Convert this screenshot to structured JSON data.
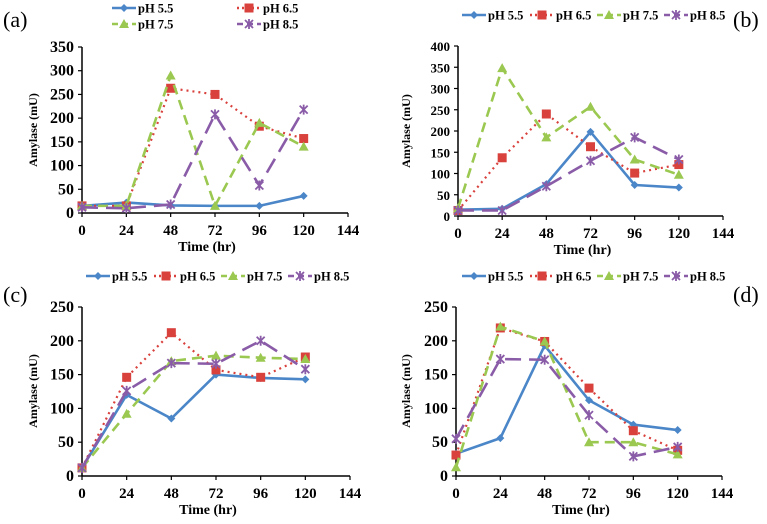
{
  "colors": {
    "pH 5.5": "#4a86c8",
    "pH 6.5": "#d9413d",
    "pH 7.5": "#9bc850",
    "pH 8.5": "#8a5ca8"
  },
  "chart_data": [
    {
      "type": "line",
      "panel_label": "(a)",
      "xlabel": "Time (hr)",
      "ylabel": "Amylase  (mU)",
      "x": [
        0,
        24,
        48,
        72,
        96,
        120
      ],
      "xticks": [
        0,
        24,
        48,
        72,
        96,
        120,
        144
      ],
      "xlim": [
        0,
        144
      ],
      "yticks": [
        0,
        50,
        100,
        150,
        200,
        250,
        300,
        350
      ],
      "ylim": [
        0,
        350
      ],
      "legend_placement": "top",
      "series": [
        {
          "name": "pH 5.5",
          "values": [
            15,
            22,
            16,
            15,
            15,
            36
          ]
        },
        {
          "name": "pH 6.5",
          "values": [
            15,
            15,
            263,
            250,
            183,
            157
          ]
        },
        {
          "name": "pH 7.5",
          "values": [
            15,
            15,
            290,
            15,
            190,
            140
          ]
        },
        {
          "name": "pH 8.5",
          "values": [
            12,
            10,
            18,
            208,
            58,
            218
          ]
        }
      ]
    },
    {
      "type": "line",
      "panel_label": "(b)",
      "xlabel": "Time (hr)",
      "ylabel": "Amylase  (mU)",
      "x": [
        0,
        24,
        48,
        72,
        96,
        120
      ],
      "xticks": [
        0,
        24,
        48,
        72,
        96,
        120,
        144
      ],
      "xlim": [
        0,
        144
      ],
      "yticks": [
        0,
        50,
        100,
        150,
        200,
        250,
        300,
        350,
        400
      ],
      "ylim": [
        0,
        400
      ],
      "legend_placement": "top",
      "series": [
        {
          "name": "pH 5.5",
          "values": [
            15,
            17,
            75,
            198,
            73,
            67
          ]
        },
        {
          "name": "pH 6.5",
          "values": [
            13,
            137,
            240,
            163,
            101,
            121
          ]
        },
        {
          "name": "pH 7.5",
          "values": [
            18,
            348,
            185,
            257,
            133,
            97
          ]
        },
        {
          "name": "pH 8.5",
          "values": [
            13,
            13,
            70,
            130,
            185,
            133
          ]
        }
      ]
    },
    {
      "type": "line",
      "panel_label": "(c)",
      "xlabel": "Time (hr)",
      "ylabel": "Amylase (mU)",
      "x": [
        0,
        24,
        48,
        72,
        96,
        120
      ],
      "xticks": [
        0,
        24,
        48,
        72,
        96,
        120,
        144
      ],
      "xlim": [
        0,
        144
      ],
      "yticks": [
        0,
        50,
        100,
        150,
        200,
        250
      ],
      "ylim": [
        0,
        250
      ],
      "legend_placement": "top",
      "series": [
        {
          "name": "pH 5.5",
          "values": [
            12,
            120,
            85,
            150,
            145,
            143
          ]
        },
        {
          "name": "pH 6.5",
          "values": [
            12,
            146,
            212,
            157,
            146,
            176
          ]
        },
        {
          "name": "pH 7.5",
          "values": [
            12,
            92,
            170,
            178,
            175,
            173
          ]
        },
        {
          "name": "pH 8.5",
          "values": [
            12,
            126,
            167,
            166,
            200,
            158
          ]
        }
      ]
    },
    {
      "type": "line",
      "panel_label": "(d)",
      "xlabel": "Time (hr)",
      "ylabel": "Amylase  (mU)",
      "x": [
        0,
        24,
        48,
        72,
        96,
        120
      ],
      "xticks": [
        0,
        24,
        48,
        72,
        96,
        120,
        144
      ],
      "xlim": [
        0,
        144
      ],
      "yticks": [
        0,
        50,
        100,
        150,
        200,
        250
      ],
      "ylim": [
        0,
        250
      ],
      "legend_placement": "top",
      "series": [
        {
          "name": "pH 5.5",
          "values": [
            33,
            56,
            193,
            112,
            76,
            68
          ]
        },
        {
          "name": "pH 6.5",
          "values": [
            31,
            219,
            199,
            130,
            67,
            38
          ]
        },
        {
          "name": "pH 7.5",
          "values": [
            13,
            221,
            199,
            50,
            50,
            32
          ]
        },
        {
          "name": "pH 8.5",
          "values": [
            55,
            173,
            172,
            90,
            29,
            43
          ]
        }
      ]
    }
  ]
}
